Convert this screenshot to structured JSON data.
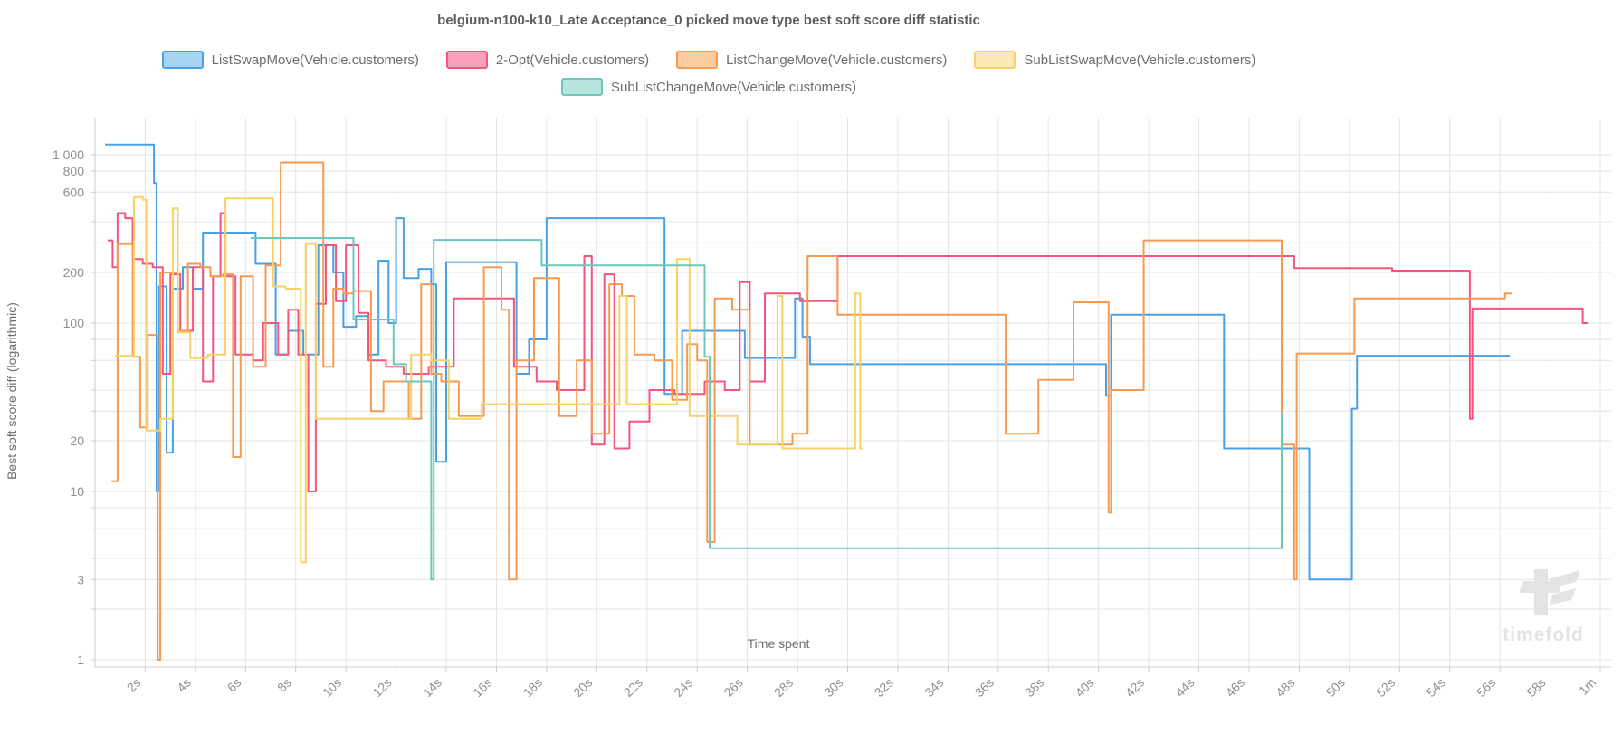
{
  "title": "belgium-n100-k10_Late Acceptance_0 picked move type best soft score diff statistic",
  "watermark": {
    "text": "timefold"
  },
  "axes": {
    "y_label": "Best soft score diff (logarithmic)",
    "x_label": "Time spent",
    "y_ticks": [
      {
        "v": 1000,
        "label": "1 000"
      },
      {
        "v": 800,
        "label": "800"
      },
      {
        "v": 600,
        "label": "600"
      },
      {
        "v": 400,
        "label": ""
      },
      {
        "v": 300,
        "label": ""
      },
      {
        "v": 200,
        "label": "200"
      },
      {
        "v": 100,
        "label": "100"
      },
      {
        "v": 80,
        "label": ""
      },
      {
        "v": 60,
        "label": ""
      },
      {
        "v": 40,
        "label": ""
      },
      {
        "v": 30,
        "label": ""
      },
      {
        "v": 20,
        "label": "20"
      },
      {
        "v": 10,
        "label": "10"
      },
      {
        "v": 8,
        "label": ""
      },
      {
        "v": 6,
        "label": ""
      },
      {
        "v": 4,
        "label": ""
      },
      {
        "v": 3,
        "label": "3"
      },
      {
        "v": 2,
        "label": ""
      },
      {
        "v": 1,
        "label": "1"
      }
    ],
    "x_ticks": [
      {
        "t": 2,
        "label": "2s"
      },
      {
        "t": 4,
        "label": "4s"
      },
      {
        "t": 6,
        "label": "6s"
      },
      {
        "t": 8,
        "label": "8s"
      },
      {
        "t": 10,
        "label": "10s"
      },
      {
        "t": 12,
        "label": "12s"
      },
      {
        "t": 14,
        "label": "14s"
      },
      {
        "t": 16,
        "label": "16s"
      },
      {
        "t": 18,
        "label": "18s"
      },
      {
        "t": 20,
        "label": "20s"
      },
      {
        "t": 22,
        "label": "22s"
      },
      {
        "t": 24,
        "label": "24s"
      },
      {
        "t": 26,
        "label": "26s"
      },
      {
        "t": 28,
        "label": "28s"
      },
      {
        "t": 30,
        "label": "30s"
      },
      {
        "t": 32,
        "label": "32s"
      },
      {
        "t": 34,
        "label": "34s"
      },
      {
        "t": 36,
        "label": "36s"
      },
      {
        "t": 38,
        "label": "38s"
      },
      {
        "t": 40,
        "label": "40s"
      },
      {
        "t": 42,
        "label": "42s"
      },
      {
        "t": 44,
        "label": "44s"
      },
      {
        "t": 46,
        "label": "46s"
      },
      {
        "t": 48,
        "label": "48s"
      },
      {
        "t": 50,
        "label": "50s"
      },
      {
        "t": 52,
        "label": "52s"
      },
      {
        "t": 54,
        "label": "54s"
      },
      {
        "t": 56,
        "label": "56s"
      },
      {
        "t": 58,
        "label": "58s"
      },
      {
        "t": 60,
        "label": "1m"
      }
    ]
  },
  "colors": {
    "grid": "#e4e4e4",
    "axis_line": "#cccccc",
    "tick_text": "#8f8f8f",
    "watermark": "#e3e3e3"
  },
  "chart_data": {
    "type": "line",
    "subtype": "step-after",
    "title": "belgium-n100-k10_Late Acceptance_0 picked move type best soft score diff statistic",
    "xlabel": "Time spent",
    "ylabel": "Best soft score diff (logarithmic)",
    "x_unit": "seconds",
    "x_range": [
      0,
      60
    ],
    "y_scale": "log",
    "y_range": [
      1,
      1300
    ],
    "grid": true,
    "legend_position": "top",
    "note": "values estimated from log-scale gridlines",
    "series": [
      {
        "name": "ListSwapMove(Vehicle.customers)",
        "color": "#4aa0e4",
        "fill": "#a8d3f2",
        "end_t": 56.4,
        "points": [
          [
            0.4,
            1150
          ],
          [
            2.35,
            680
          ],
          [
            2.45,
            10
          ],
          [
            2.55,
            165
          ],
          [
            2.85,
            17
          ],
          [
            3.1,
            160
          ],
          [
            3.5,
            215
          ],
          [
            3.9,
            160
          ],
          [
            4.3,
            345
          ],
          [
            6.4,
            225
          ],
          [
            7.2,
            65
          ],
          [
            7.7,
            90
          ],
          [
            8.3,
            65
          ],
          [
            8.9,
            290
          ],
          [
            9.5,
            200
          ],
          [
            9.9,
            95
          ],
          [
            10.4,
            110
          ],
          [
            10.9,
            65
          ],
          [
            11.3,
            235
          ],
          [
            11.7,
            100
          ],
          [
            12.0,
            420
          ],
          [
            12.3,
            185
          ],
          [
            12.9,
            210
          ],
          [
            13.4,
            170
          ],
          [
            13.6,
            15
          ],
          [
            14.0,
            230
          ],
          [
            16.8,
            50
          ],
          [
            17.3,
            80
          ],
          [
            18.0,
            420
          ],
          [
            22.7,
            38
          ],
          [
            23.4,
            90
          ],
          [
            25.9,
            62
          ],
          [
            27.9,
            140
          ],
          [
            28.2,
            83
          ],
          [
            28.5,
            57
          ],
          [
            40.3,
            37
          ],
          [
            40.5,
            112
          ],
          [
            45.0,
            18
          ],
          [
            48.4,
            3
          ],
          [
            50.1,
            31
          ],
          [
            50.3,
            64
          ]
        ]
      },
      {
        "name": "2-Opt(Vehicle.customers)",
        "color": "#f4557c",
        "fill": "#f9a0ba",
        "end_t": 59.5,
        "points": [
          [
            0.5,
            310
          ],
          [
            0.7,
            215
          ],
          [
            0.9,
            450
          ],
          [
            1.2,
            420
          ],
          [
            1.5,
            240
          ],
          [
            1.9,
            225
          ],
          [
            2.3,
            215
          ],
          [
            2.7,
            50
          ],
          [
            3.0,
            195
          ],
          [
            3.4,
            90
          ],
          [
            3.9,
            215
          ],
          [
            4.3,
            45
          ],
          [
            4.7,
            190
          ],
          [
            5.0,
            450
          ],
          [
            5.2,
            190
          ],
          [
            5.6,
            65
          ],
          [
            6.3,
            60
          ],
          [
            6.7,
            100
          ],
          [
            7.3,
            65
          ],
          [
            7.7,
            120
          ],
          [
            8.1,
            65
          ],
          [
            8.5,
            10
          ],
          [
            8.8,
            130
          ],
          [
            9.2,
            290
          ],
          [
            9.6,
            135
          ],
          [
            10.0,
            290
          ],
          [
            10.5,
            115
          ],
          [
            10.9,
            60
          ],
          [
            11.6,
            55
          ],
          [
            12.3,
            50
          ],
          [
            13.3,
            55
          ],
          [
            14.3,
            140
          ],
          [
            16.7,
            55
          ],
          [
            17.6,
            45
          ],
          [
            18.4,
            40
          ],
          [
            19.5,
            250
          ],
          [
            19.8,
            19
          ],
          [
            20.3,
            195
          ],
          [
            20.7,
            18
          ],
          [
            21.3,
            26
          ],
          [
            22.1,
            40
          ],
          [
            23.1,
            38
          ],
          [
            24.3,
            45
          ],
          [
            25.1,
            40
          ],
          [
            25.7,
            175
          ],
          [
            26.1,
            45
          ],
          [
            26.7,
            150
          ],
          [
            28.1,
            135
          ],
          [
            29.6,
            250
          ],
          [
            47.8,
            212
          ],
          [
            51.7,
            205
          ],
          [
            54.8,
            27
          ],
          [
            54.9,
            122
          ],
          [
            59.3,
            100
          ]
        ]
      },
      {
        "name": "ListChangeMove(Vehicle.customers)",
        "color": "#f79a51",
        "fill": "#fbcda1",
        "end_t": 56.5,
        "points": [
          [
            0.65,
            11.5
          ],
          [
            0.9,
            295
          ],
          [
            1.5,
            63
          ],
          [
            1.8,
            24
          ],
          [
            2.1,
            85
          ],
          [
            2.5,
            1
          ],
          [
            2.6,
            200
          ],
          [
            3.3,
            90
          ],
          [
            3.7,
            225
          ],
          [
            4.2,
            215
          ],
          [
            4.6,
            190
          ],
          [
            5.1,
            195
          ],
          [
            5.5,
            16
          ],
          [
            5.8,
            190
          ],
          [
            6.3,
            55
          ],
          [
            6.8,
            220
          ],
          [
            7.4,
            900
          ],
          [
            9.1,
            55
          ],
          [
            9.5,
            160
          ],
          [
            9.9,
            150
          ],
          [
            10.3,
            155
          ],
          [
            11.0,
            30
          ],
          [
            11.5,
            45
          ],
          [
            12.5,
            27
          ],
          [
            13.0,
            170
          ],
          [
            13.4,
            50
          ],
          [
            13.8,
            45
          ],
          [
            14.5,
            28
          ],
          [
            15.5,
            215
          ],
          [
            16.2,
            120
          ],
          [
            16.5,
            3
          ],
          [
            16.8,
            60
          ],
          [
            17.5,
            185
          ],
          [
            18.5,
            28
          ],
          [
            19.2,
            60
          ],
          [
            19.8,
            22
          ],
          [
            20.5,
            170
          ],
          [
            21.0,
            145
          ],
          [
            21.5,
            65
          ],
          [
            22.3,
            60
          ],
          [
            23.0,
            35
          ],
          [
            23.6,
            75
          ],
          [
            24.0,
            60
          ],
          [
            24.4,
            5
          ],
          [
            24.7,
            140
          ],
          [
            25.4,
            120
          ],
          [
            26.1,
            19
          ],
          [
            27.8,
            22
          ],
          [
            28.4,
            250
          ],
          [
            29.6,
            112
          ],
          [
            36.3,
            22
          ],
          [
            37.6,
            46
          ],
          [
            39.0,
            133
          ],
          [
            40.4,
            7.5
          ],
          [
            40.5,
            40
          ],
          [
            41.8,
            310
          ],
          [
            47.3,
            19
          ],
          [
            47.8,
            3
          ],
          [
            47.9,
            66
          ],
          [
            50.2,
            140
          ],
          [
            56.2,
            150
          ]
        ]
      },
      {
        "name": "SubListSwapMove(Vehicle.customers)",
        "color": "#f8d264",
        "fill": "#fce9b4",
        "end_t": 30.6,
        "points": [
          [
            0.8,
            64
          ],
          [
            1.55,
            560
          ],
          [
            1.9,
            540
          ],
          [
            2.05,
            23
          ],
          [
            2.6,
            27
          ],
          [
            3.1,
            480
          ],
          [
            3.3,
            88
          ],
          [
            3.8,
            62
          ],
          [
            4.5,
            65
          ],
          [
            5.2,
            550
          ],
          [
            7.1,
            165
          ],
          [
            7.6,
            160
          ],
          [
            8.2,
            3.8
          ],
          [
            8.4,
            295
          ],
          [
            8.8,
            27
          ],
          [
            12.6,
            65
          ],
          [
            13.4,
            60
          ],
          [
            14.1,
            27
          ],
          [
            15.4,
            33
          ],
          [
            20.9,
            145
          ],
          [
            21.2,
            33
          ],
          [
            23.2,
            240
          ],
          [
            23.7,
            28
          ],
          [
            25.6,
            19
          ],
          [
            27.2,
            145
          ],
          [
            27.4,
            18
          ],
          [
            30.3,
            150
          ],
          [
            30.5,
            18
          ]
        ]
      },
      {
        "name": "SubListChangeMove(Vehicle.customers)",
        "color": "#6cc7bb",
        "fill": "#b7e4dd",
        "end_t": 47.35,
        "points": [
          [
            6.2,
            320
          ],
          [
            10.3,
            105
          ],
          [
            11.9,
            57
          ],
          [
            12.4,
            45
          ],
          [
            13.4,
            3
          ],
          [
            13.5,
            312
          ],
          [
            17.8,
            220
          ],
          [
            24.3,
            63
          ],
          [
            24.5,
            4.6
          ],
          [
            47.3,
            29
          ]
        ]
      }
    ]
  }
}
